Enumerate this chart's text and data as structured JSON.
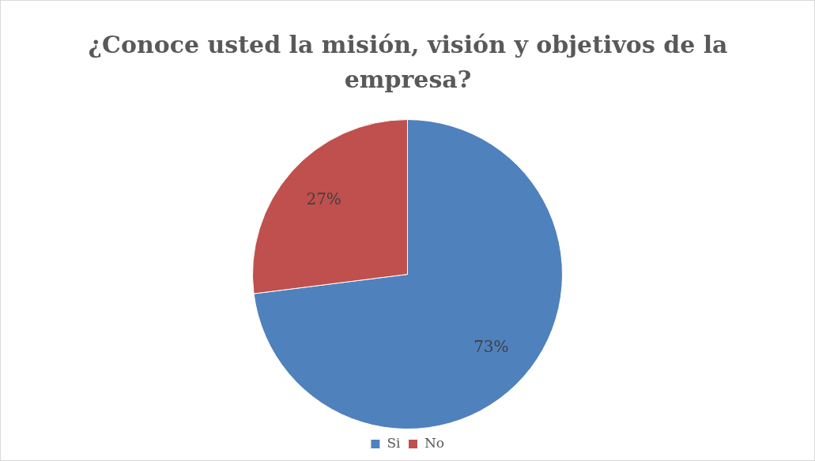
{
  "chart_data": {
    "type": "pie",
    "title": "¿Conoce usted la misión, visión y objetivos de la empresa?",
    "categories": [
      "Si",
      "No"
    ],
    "values": [
      73,
      27
    ],
    "colors": [
      "#4f81bd",
      "#c0504d"
    ],
    "value_labels": [
      "73%",
      "27%"
    ],
    "legend": "bottom"
  }
}
